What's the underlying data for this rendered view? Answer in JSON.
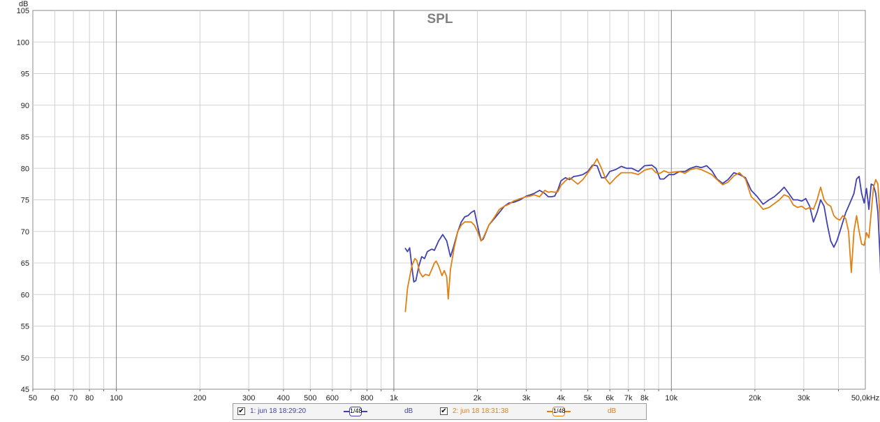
{
  "chart_data": {
    "type": "line",
    "title": "SPL",
    "ylabel": "dB",
    "xunit_label": "50,0kHz",
    "xscale": "log",
    "xlim": [
      50,
      50000
    ],
    "ylim": [
      45,
      105
    ],
    "grid": true,
    "y_ticks": [
      45,
      50,
      55,
      60,
      65,
      70,
      75,
      80,
      85,
      90,
      95,
      100,
      105
    ],
    "x_ticks": [
      {
        "v": 50,
        "t": "50"
      },
      {
        "v": 60,
        "t": "60"
      },
      {
        "v": 70,
        "t": "70"
      },
      {
        "v": 80,
        "t": "80"
      },
      {
        "v": 90,
        "t": ""
      },
      {
        "v": 100,
        "t": "100"
      },
      {
        "v": 200,
        "t": "200"
      },
      {
        "v": 300,
        "t": "300"
      },
      {
        "v": 400,
        "t": "400"
      },
      {
        "v": 500,
        "t": "500"
      },
      {
        "v": 600,
        "t": "600"
      },
      {
        "v": 700,
        "t": ""
      },
      {
        "v": 800,
        "t": "800"
      },
      {
        "v": 900,
        "t": ""
      },
      {
        "v": 1000,
        "t": "1k"
      },
      {
        "v": 2000,
        "t": "2k"
      },
      {
        "v": 3000,
        "t": "3k"
      },
      {
        "v": 4000,
        "t": "4k"
      },
      {
        "v": 5000,
        "t": "5k"
      },
      {
        "v": 6000,
        "t": "6k"
      },
      {
        "v": 7000,
        "t": "7k"
      },
      {
        "v": 8000,
        "t": "8k"
      },
      {
        "v": 9000,
        "t": ""
      },
      {
        "v": 10000,
        "t": "10k"
      },
      {
        "v": 20000,
        "t": "20k"
      },
      {
        "v": 30000,
        "t": "30k"
      },
      {
        "v": 40000,
        "t": ""
      }
    ],
    "series": [
      {
        "name": "1: jun 18 18:29:20",
        "unit": "dB",
        "smoothing": "1/48",
        "color": "#4040b0",
        "points": [
          [
            1100,
            67.3
          ],
          [
            1120,
            66.8
          ],
          [
            1140,
            67.4
          ],
          [
            1160,
            64.5
          ],
          [
            1180,
            62
          ],
          [
            1200,
            62.2
          ],
          [
            1230,
            64.5
          ],
          [
            1260,
            66
          ],
          [
            1290,
            65.7
          ],
          [
            1320,
            66.8
          ],
          [
            1370,
            67.2
          ],
          [
            1400,
            67
          ],
          [
            1450,
            68.5
          ],
          [
            1500,
            69.5
          ],
          [
            1550,
            68.5
          ],
          [
            1600,
            66
          ],
          [
            1640,
            67.5
          ],
          [
            1700,
            70
          ],
          [
            1750,
            71.5
          ],
          [
            1800,
            72.3
          ],
          [
            1850,
            72.5
          ],
          [
            1900,
            73
          ],
          [
            1950,
            73.3
          ],
          [
            2000,
            71
          ],
          [
            2060,
            68.5
          ],
          [
            2100,
            68.8
          ],
          [
            2200,
            71
          ],
          [
            2300,
            72
          ],
          [
            2400,
            73
          ],
          [
            2500,
            74
          ],
          [
            2600,
            74.5
          ],
          [
            2700,
            74.6
          ],
          [
            2850,
            75
          ],
          [
            3000,
            75.6
          ],
          [
            3100,
            75.8
          ],
          [
            3200,
            76
          ],
          [
            3350,
            76.5
          ],
          [
            3500,
            76
          ],
          [
            3600,
            75.5
          ],
          [
            3700,
            75.5
          ],
          [
            3800,
            75.6
          ],
          [
            3900,
            76.6
          ],
          [
            4000,
            78
          ],
          [
            4150,
            78.5
          ],
          [
            4300,
            78.2
          ],
          [
            4450,
            78.7
          ],
          [
            4600,
            78.8
          ],
          [
            4800,
            79
          ],
          [
            5000,
            79.5
          ],
          [
            5200,
            80.5
          ],
          [
            5400,
            80.4
          ],
          [
            5600,
            78.5
          ],
          [
            5800,
            78.5
          ],
          [
            6000,
            79.5
          ],
          [
            6300,
            79.8
          ],
          [
            6600,
            80.3
          ],
          [
            6900,
            80
          ],
          [
            7200,
            80
          ],
          [
            7600,
            79.5
          ],
          [
            8000,
            80.4
          ],
          [
            8500,
            80.5
          ],
          [
            8800,
            80
          ],
          [
            9100,
            78.3
          ],
          [
            9400,
            78.3
          ],
          [
            9800,
            79
          ],
          [
            10200,
            79
          ],
          [
            10700,
            79.5
          ],
          [
            11200,
            79.5
          ],
          [
            11700,
            80
          ],
          [
            12300,
            80.3
          ],
          [
            12800,
            80.1
          ],
          [
            13400,
            80.4
          ],
          [
            14000,
            79.6
          ],
          [
            14600,
            78.3
          ],
          [
            15300,
            77.6
          ],
          [
            16000,
            78.2
          ],
          [
            16800,
            79.3
          ],
          [
            17600,
            79
          ],
          [
            18500,
            78.5
          ],
          [
            19400,
            76.5
          ],
          [
            20400,
            75.5
          ],
          [
            21400,
            74.3
          ],
          [
            22500,
            75
          ],
          [
            23500,
            75.5
          ],
          [
            24500,
            76.2
          ],
          [
            25500,
            77
          ],
          [
            26500,
            76
          ],
          [
            27500,
            75
          ],
          [
            28500,
            75
          ],
          [
            29500,
            74.8
          ],
          [
            30500,
            75.2
          ],
          [
            31500,
            74
          ],
          [
            32500,
            71.5
          ],
          [
            33500,
            73
          ],
          [
            34500,
            75
          ],
          [
            35500,
            74
          ],
          [
            36500,
            71
          ],
          [
            37500,
            68.5
          ],
          [
            38500,
            67.5
          ],
          [
            39500,
            68.5
          ],
          [
            40500,
            70
          ],
          [
            41500,
            71.5
          ],
          [
            42500,
            73
          ],
          [
            43500,
            74
          ],
          [
            44500,
            75
          ],
          [
            45500,
            76
          ],
          [
            46500,
            78.3
          ],
          [
            47500,
            78.7
          ],
          [
            48500,
            76
          ],
          [
            49500,
            74.5
          ],
          [
            50500,
            76.8
          ],
          [
            51500,
            73.5
          ],
          [
            52500,
            77.5
          ],
          [
            53500,
            77.3
          ],
          [
            54500,
            76
          ],
          [
            55500,
            73
          ],
          [
            56500,
            66
          ],
          [
            57500,
            55
          ],
          [
            58500,
            45
          ]
        ]
      },
      {
        "name": "2: jun 18 18:31:38",
        "unit": "dB",
        "smoothing": "1/48",
        "color": "#e08010",
        "points": [
          [
            1100,
            57.3
          ],
          [
            1120,
            61
          ],
          [
            1160,
            64.5
          ],
          [
            1190,
            65.7
          ],
          [
            1210,
            65.4
          ],
          [
            1240,
            63.5
          ],
          [
            1270,
            62.8
          ],
          [
            1300,
            63.2
          ],
          [
            1340,
            63
          ],
          [
            1370,
            64
          ],
          [
            1400,
            65
          ],
          [
            1420,
            65.3
          ],
          [
            1450,
            64.5
          ],
          [
            1490,
            63
          ],
          [
            1520,
            63.8
          ],
          [
            1550,
            62.8
          ],
          [
            1570,
            59.3
          ],
          [
            1600,
            64
          ],
          [
            1650,
            67.5
          ],
          [
            1700,
            70
          ],
          [
            1750,
            71
          ],
          [
            1800,
            71.5
          ],
          [
            1850,
            71.5
          ],
          [
            1900,
            71.5
          ],
          [
            1950,
            71
          ],
          [
            2000,
            70
          ],
          [
            2060,
            68.5
          ],
          [
            2100,
            69
          ],
          [
            2200,
            71
          ],
          [
            2300,
            72.2
          ],
          [
            2400,
            73.5
          ],
          [
            2500,
            74
          ],
          [
            2600,
            74.3
          ],
          [
            2700,
            74.8
          ],
          [
            2850,
            75.2
          ],
          [
            3000,
            75.5
          ],
          [
            3100,
            75.6
          ],
          [
            3200,
            75.8
          ],
          [
            3350,
            75.5
          ],
          [
            3500,
            76.5
          ],
          [
            3600,
            76.2
          ],
          [
            3700,
            76.3
          ],
          [
            3800,
            76.2
          ],
          [
            3900,
            76.3
          ],
          [
            4000,
            77.3
          ],
          [
            4150,
            78
          ],
          [
            4300,
            78.5
          ],
          [
            4450,
            78
          ],
          [
            4600,
            77.5
          ],
          [
            4800,
            78.2
          ],
          [
            5000,
            79.3
          ],
          [
            5200,
            80.3
          ],
          [
            5400,
            81.5
          ],
          [
            5600,
            80
          ],
          [
            5800,
            78.3
          ],
          [
            6000,
            77.5
          ],
          [
            6300,
            78.5
          ],
          [
            6600,
            79.3
          ],
          [
            6900,
            79.3
          ],
          [
            7200,
            79.3
          ],
          [
            7600,
            79
          ],
          [
            8000,
            79.7
          ],
          [
            8500,
            80
          ],
          [
            8800,
            79.3
          ],
          [
            9100,
            79.2
          ],
          [
            9400,
            79.6
          ],
          [
            9800,
            79.3
          ],
          [
            10200,
            79.4
          ],
          [
            10700,
            79.5
          ],
          [
            11200,
            79.2
          ],
          [
            11700,
            79.8
          ],
          [
            12300,
            80
          ],
          [
            12800,
            79.8
          ],
          [
            13400,
            79.4
          ],
          [
            14000,
            79
          ],
          [
            14600,
            78.2
          ],
          [
            15300,
            77.4
          ],
          [
            16000,
            77.8
          ],
          [
            16800,
            78.8
          ],
          [
            17600,
            79.3
          ],
          [
            18500,
            78.3
          ],
          [
            19400,
            75.5
          ],
          [
            20400,
            74.6
          ],
          [
            21400,
            73.5
          ],
          [
            22500,
            73.8
          ],
          [
            23500,
            74.4
          ],
          [
            24500,
            75
          ],
          [
            25500,
            75.8
          ],
          [
            26500,
            75.5
          ],
          [
            27500,
            74.2
          ],
          [
            28500,
            73.8
          ],
          [
            29500,
            74
          ],
          [
            30500,
            73.5
          ],
          [
            31500,
            73.8
          ],
          [
            32500,
            73.5
          ],
          [
            33500,
            75
          ],
          [
            34500,
            77
          ],
          [
            35500,
            75
          ],
          [
            36500,
            74.3
          ],
          [
            37500,
            74
          ],
          [
            38500,
            72.5
          ],
          [
            39500,
            72
          ],
          [
            40500,
            71.8
          ],
          [
            41500,
            72.5
          ],
          [
            42500,
            72
          ],
          [
            43500,
            70
          ],
          [
            44500,
            63.5
          ],
          [
            45500,
            70
          ],
          [
            46500,
            72.5
          ],
          [
            47500,
            70
          ],
          [
            48500,
            68
          ],
          [
            49500,
            67.8
          ],
          [
            50500,
            69.8
          ],
          [
            51500,
            69
          ],
          [
            52500,
            73
          ],
          [
            53500,
            77
          ],
          [
            54500,
            78.2
          ],
          [
            55500,
            77.5
          ],
          [
            56500,
            72
          ],
          [
            57500,
            65
          ],
          [
            58500,
            55
          ],
          [
            59500,
            45
          ]
        ]
      }
    ]
  },
  "legend": {
    "entries": [
      {
        "check": "✔",
        "label": "1: jun 18 18:29:20",
        "smooth_label": "1/48",
        "unit": "dB",
        "color": "#4040b0"
      },
      {
        "check": "✔",
        "label": "2: jun 18 18:31:38",
        "smooth_label": "1/48",
        "unit": "dB",
        "color": "#e08010"
      }
    ]
  }
}
